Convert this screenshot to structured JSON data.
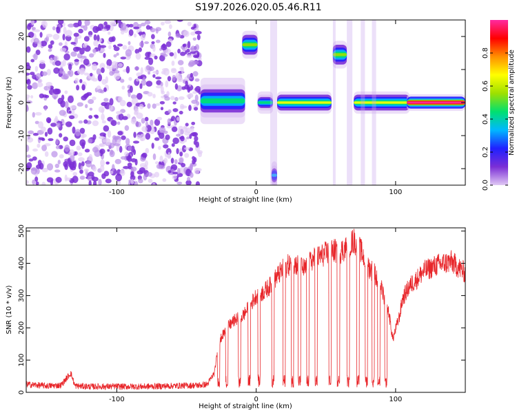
{
  "figure_title": "S197.2026.020.05.46.R11",
  "chart_data": [
    {
      "type": "heatmap",
      "title": "S197.2026.020.05.46.R11",
      "xlabel": "Height of straight line (km)",
      "ylabel": "Frequency (Hz)",
      "xlim": [
        -165,
        150
      ],
      "ylim": [
        -25,
        25
      ],
      "x_ticks": [
        -100,
        0,
        100
      ],
      "x_tick_labels": [
        "-100",
        "0",
        "100"
      ],
      "y_ticks": [
        -20,
        -10,
        0,
        10,
        20
      ],
      "y_tick_labels": [
        "-20",
        "-10",
        "0",
        "10",
        "20"
      ],
      "colorbar": {
        "label": "Normalized spectral amplitude",
        "range": [
          0,
          1
        ],
        "ticks": [
          0,
          0.2,
          0.4,
          0.6,
          0.8
        ],
        "tick_labels": [
          "0.0",
          "0.2",
          "0.4",
          "0.6",
          "0.8"
        ],
        "colormap": [
          "#e0c8f4",
          "#7b2fd6",
          "#2020ff",
          "#00b8ff",
          "#00e070",
          "#9ee000",
          "#ffff00",
          "#ff9000",
          "#ff0000",
          "#ff2aa0"
        ]
      },
      "noise_region": {
        "x_range": [
          -165,
          -40
        ],
        "f_range": [
          -25,
          25
        ],
        "amplitude": 0.12
      },
      "features": [
        {
          "x_range": [
            -40,
            -8
          ],
          "f_center": 0.5,
          "f_halfwidth": 2.5,
          "peak": 0.45
        },
        {
          "x_range": [
            -10,
            1
          ],
          "f_center": 17.5,
          "f_halfwidth": 1.5,
          "peak": 0.5
        },
        {
          "x_range": [
            1,
            12
          ],
          "f_center": 0,
          "f_halfwidth": 1.2,
          "peak": 0.45
        },
        {
          "x_range": [
            11,
            15
          ],
          "f_center": -22,
          "f_halfwidth": 1.5,
          "peak": 0.35
        },
        {
          "x_range": [
            15,
            54
          ],
          "f_center": 0,
          "f_halfwidth": 1.2,
          "peak": 0.6
        },
        {
          "x_range": [
            55,
            65
          ],
          "f_center": 14.5,
          "f_halfwidth": 1.5,
          "peak": 0.55
        },
        {
          "x_range": [
            70,
            110
          ],
          "f_center": 0,
          "f_halfwidth": 1.2,
          "peak": 0.6
        },
        {
          "x_range": [
            108,
            150
          ],
          "f_center": 0,
          "f_halfwidth": 0.9,
          "peak": 0.98
        }
      ]
    },
    {
      "type": "line",
      "xlabel": "Height of straight line (km)",
      "ylabel": "SNR (10 * v/v)",
      "xlim": [
        -165,
        150
      ],
      "ylim": [
        0,
        510
      ],
      "x_ticks": [
        -100,
        0,
        100
      ],
      "x_tick_labels": [
        "-100",
        "0",
        "100"
      ],
      "y_ticks": [
        0,
        100,
        200,
        300,
        400,
        500
      ],
      "y_tick_labels": [
        "0",
        "100",
        "200",
        "300",
        "400",
        "500"
      ],
      "series": [
        {
          "name": "SNR",
          "color": "#e8262a",
          "x": [
            -165,
            -150,
            -140,
            -133,
            -130,
            -120,
            -100,
            -80,
            -60,
            -40,
            -35,
            -30,
            -28,
            -25,
            -20,
            -15,
            -10,
            -5,
            0,
            5,
            10,
            15,
            20,
            25,
            30,
            35,
            40,
            45,
            50,
            55,
            60,
            65,
            70,
            75,
            80,
            85,
            90,
            95,
            98,
            100,
            103,
            105,
            110,
            115,
            120,
            130,
            140,
            150
          ],
          "y": [
            25,
            20,
            22,
            60,
            20,
            18,
            18,
            18,
            20,
            22,
            25,
            60,
            120,
            170,
            205,
            225,
            235,
            265,
            300,
            310,
            330,
            360,
            385,
            400,
            395,
            380,
            410,
            420,
            430,
            440,
            435,
            450,
            470,
            440,
            390,
            370,
            320,
            250,
            165,
            195,
            240,
            290,
            330,
            350,
            375,
            395,
            405,
            370
          ]
        }
      ],
      "dropouts_x": [
        -27,
        -21,
        -12,
        -5,
        2,
        12,
        20,
        26,
        31,
        37,
        43,
        53,
        59,
        66,
        73,
        79,
        84,
        88,
        93
      ]
    }
  ]
}
